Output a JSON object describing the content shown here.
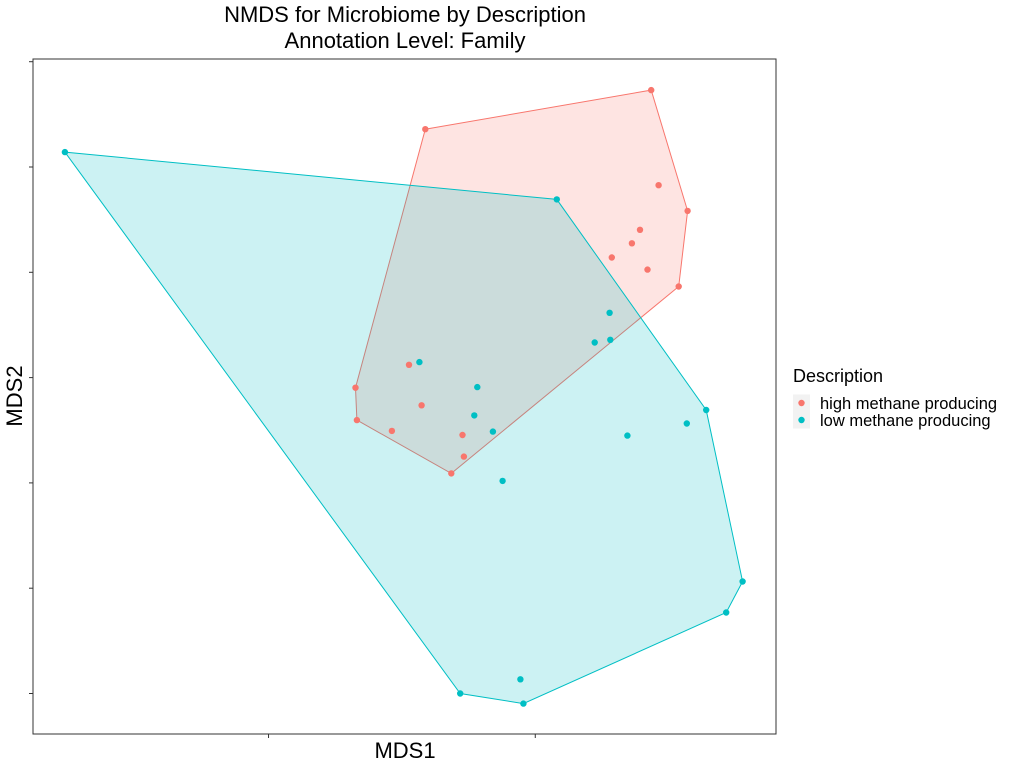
{
  "chart_data": {
    "type": "scatter",
    "title": "NMDS for Microbiome by Description",
    "subtitle": "Annotation Level: Family",
    "xlabel": "MDS1",
    "ylabel": "MDS2",
    "xlim": [
      0,
      1
    ],
    "ylim": [
      0,
      1
    ],
    "tick_labels_shown": false,
    "grid": false,
    "legend": {
      "title": "Description",
      "placement": "right"
    },
    "hulls_shown": true,
    "series": [
      {
        "name": "high methane producing",
        "color": "#F8766D",
        "points": [
          [
            0.832,
            0.954
          ],
          [
            0.528,
            0.896
          ],
          [
            0.842,
            0.813
          ],
          [
            0.881,
            0.775
          ],
          [
            0.817,
            0.747
          ],
          [
            0.806,
            0.727
          ],
          [
            0.779,
            0.706
          ],
          [
            0.827,
            0.688
          ],
          [
            0.869,
            0.663
          ],
          [
            0.506,
            0.547
          ],
          [
            0.434,
            0.513
          ],
          [
            0.523,
            0.487
          ],
          [
            0.436,
            0.465
          ],
          [
            0.483,
            0.449
          ],
          [
            0.578,
            0.443
          ],
          [
            0.58,
            0.411
          ],
          [
            0.563,
            0.386
          ]
        ]
      },
      {
        "name": "low methane producing",
        "color": "#00BFC4",
        "points": [
          [
            0.043,
            0.862
          ],
          [
            0.705,
            0.792
          ],
          [
            0.776,
            0.624
          ],
          [
            0.777,
            0.584
          ],
          [
            0.756,
            0.58
          ],
          [
            0.52,
            0.551
          ],
          [
            0.598,
            0.514
          ],
          [
            0.594,
            0.472
          ],
          [
            0.619,
            0.448
          ],
          [
            0.8,
            0.442
          ],
          [
            0.906,
            0.48
          ],
          [
            0.88,
            0.46
          ],
          [
            0.632,
            0.375
          ],
          [
            0.955,
            0.226
          ],
          [
            0.933,
            0.18
          ],
          [
            0.656,
            0.081
          ],
          [
            0.575,
            0.06
          ],
          [
            0.66,
            0.045
          ]
        ]
      }
    ]
  }
}
